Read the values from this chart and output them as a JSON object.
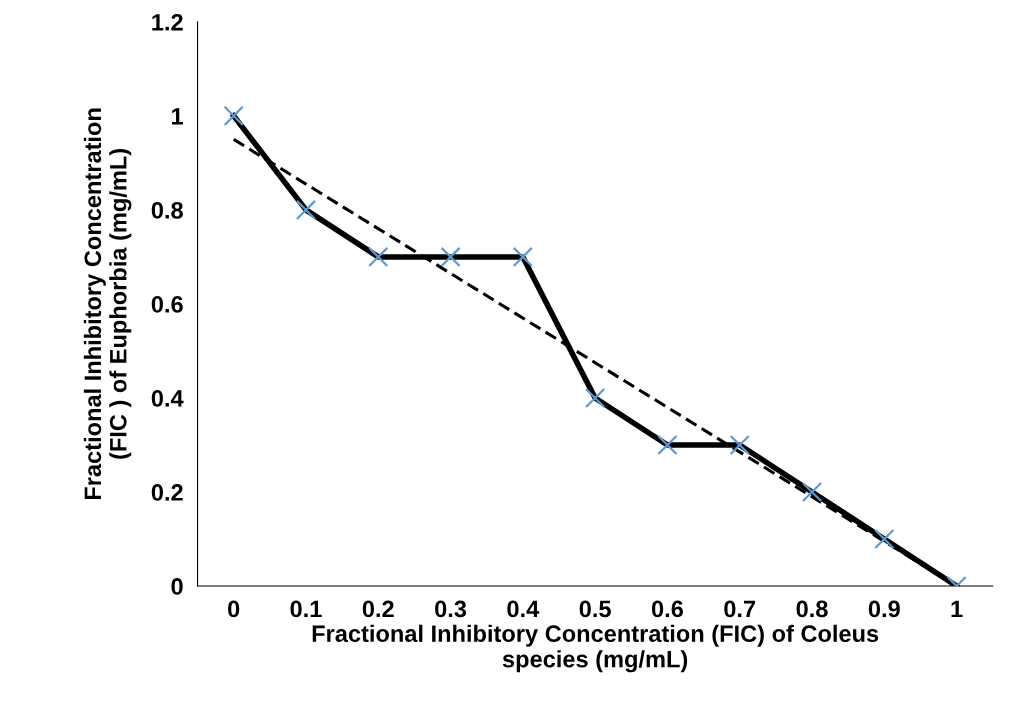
{
  "chart_data": {
    "type": "line",
    "xlabel": "Fractional Inhibitory Concentration (FIC) of Coleus\nspecies (mg/mL)",
    "ylabel": "Fractional Inhibitory Concentration\n(FIC ) of Euphorbia (mg/mL)",
    "x": [
      0,
      0.1,
      0.2,
      0.3,
      0.4,
      0.5,
      0.6,
      0.7,
      0.8,
      0.9,
      1
    ],
    "series": [
      {
        "color": "#000000",
        "colors": [
          "#5b9bd5",
          "#5b9bd5",
          "#5b9bd5",
          "#5b9bd5",
          "#5b9bd5",
          "#5b9bd5",
          "#5b9bd5",
          "#5b9bd5",
          "#5b9bd5",
          "#5b9bd5",
          "#5b9bd5"
        ],
        "marker": "cross",
        "line_style": "solid",
        "values": [
          1,
          0.8,
          0.7,
          0.7,
          0.7,
          0.4,
          0.3,
          0.3,
          0.2,
          0.1,
          0
        ]
      },
      {
        "type": "line",
        "color": "#000000",
        "marker": "none",
        "line_style": "dashed",
        "x": [
          0,
          1
        ],
        "values": [
          0.95,
          0
        ]
      }
    ],
    "xlim": [
      -0.05,
      1.05
    ],
    "xticks": [
      0,
      0.1,
      0.2,
      0.3,
      0.4,
      0.5,
      0.6,
      0.7,
      0.8,
      0.9,
      1
    ],
    "ylim": [
      0,
      1.2
    ],
    "yticks": [
      0,
      0.2,
      0.4,
      0.6,
      0.8,
      1,
      1.2
    ],
    "grid": false,
    "legend": false
  }
}
